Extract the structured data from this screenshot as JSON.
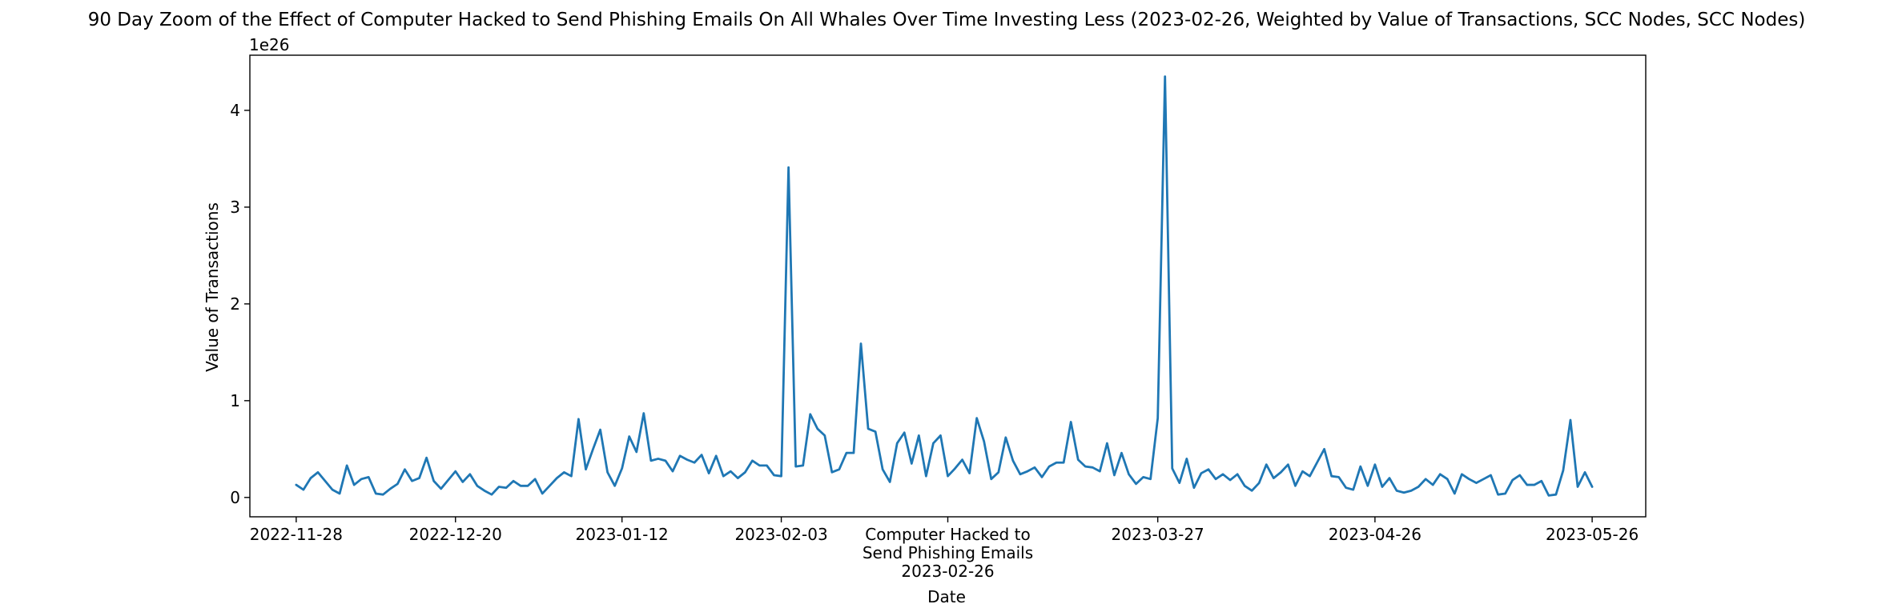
{
  "chart_data": {
    "type": "line",
    "title": "90 Day Zoom of the Effect of Computer Hacked to Send Phishing Emails On All Whales Over Time Investing Less (2023-02-26, Weighted by Value of Transactions, SCC Nodes, SCC Nodes)",
    "xlabel": "Date",
    "ylabel": "Value of Transactions",
    "y_exponent_label": "1e26",
    "y_scale_exponent": 26,
    "x_start_date": "2022-11-28",
    "x_end_date": "2023-05-26",
    "xlim_days": [
      -6.4,
      186.4
    ],
    "ylim": [
      -0.2,
      4.57
    ],
    "xticks": [
      {
        "label": "2022-11-28",
        "day": 0
      },
      {
        "label": "2022-12-20",
        "day": 22
      },
      {
        "label": "2023-01-12",
        "day": 45
      },
      {
        "label": "2023-02-03",
        "day": 67
      },
      {
        "label": "Computer Hacked to\nSend Phishing Emails\n2023-02-26",
        "day": 90
      },
      {
        "label": "2023-03-27",
        "day": 119
      },
      {
        "label": "2023-04-26",
        "day": 149
      },
      {
        "label": "2023-05-26",
        "day": 179
      }
    ],
    "yticks": [
      0,
      1,
      2,
      3,
      4
    ],
    "grid": false,
    "series": [
      {
        "color": "#1f77b4",
        "values": [
          0.13,
          0.08,
          0.2,
          0.26,
          0.17,
          0.08,
          0.04,
          0.33,
          0.13,
          0.19,
          0.21,
          0.04,
          0.03,
          0.09,
          0.14,
          0.29,
          0.17,
          0.2,
          0.41,
          0.17,
          0.09,
          0.18,
          0.27,
          0.16,
          0.24,
          0.12,
          0.07,
          0.03,
          0.11,
          0.1,
          0.17,
          0.12,
          0.12,
          0.19,
          0.04,
          0.12,
          0.2,
          0.26,
          0.22,
          0.81,
          0.29,
          0.5,
          0.7,
          0.26,
          0.12,
          0.3,
          0.63,
          0.47,
          0.87,
          0.38,
          0.4,
          0.38,
          0.27,
          0.43,
          0.39,
          0.36,
          0.44,
          0.25,
          0.43,
          0.22,
          0.27,
          0.2,
          0.26,
          0.38,
          0.33,
          0.33,
          0.23,
          0.22,
          3.41,
          0.32,
          0.33,
          0.86,
          0.71,
          0.64,
          0.26,
          0.29,
          0.46,
          0.46,
          1.59,
          0.71,
          0.68,
          0.29,
          0.16,
          0.56,
          0.67,
          0.35,
          0.64,
          0.22,
          0.56,
          0.64,
          0.22,
          0.3,
          0.39,
          0.25,
          0.82,
          0.58,
          0.19,
          0.26,
          0.62,
          0.38,
          0.24,
          0.27,
          0.31,
          0.21,
          0.32,
          0.36,
          0.36,
          0.78,
          0.39,
          0.32,
          0.31,
          0.27,
          0.56,
          0.23,
          0.46,
          0.24,
          0.14,
          0.21,
          0.19,
          0.82,
          4.35,
          0.3,
          0.15,
          0.4,
          0.1,
          0.25,
          0.29,
          0.19,
          0.24,
          0.18,
          0.24,
          0.12,
          0.07,
          0.15,
          0.34,
          0.2,
          0.26,
          0.34,
          0.12,
          0.27,
          0.22,
          0.36,
          0.5,
          0.22,
          0.21,
          0.1,
          0.08,
          0.32,
          0.12,
          0.34,
          0.11,
          0.2,
          0.07,
          0.05,
          0.07,
          0.11,
          0.19,
          0.13,
          0.24,
          0.19,
          0.04,
          0.24,
          0.19,
          0.15,
          0.19,
          0.23,
          0.03,
          0.04,
          0.18,
          0.23,
          0.13,
          0.13,
          0.17,
          0.02,
          0.03,
          0.28,
          0.8,
          0.11,
          0.26,
          0.11
        ]
      }
    ]
  }
}
